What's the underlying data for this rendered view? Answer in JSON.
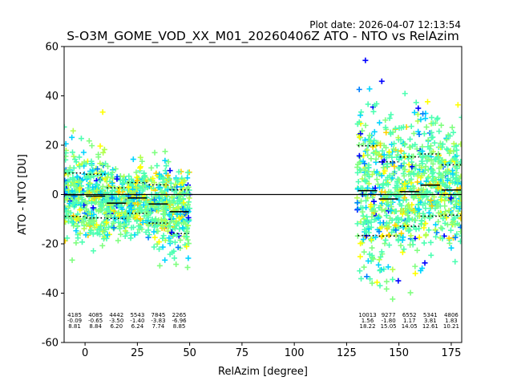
{
  "plot_date": "Plot date: 2026-04-07 12:13:54",
  "chart_data": {
    "type": "scatter",
    "title": "S-O3M_GOME_VOD_XX_M01_20260406Z ATO - NTO vs RelAzim",
    "xlabel": "RelAzim [degree]",
    "ylabel": "ATO - NTO [DU]",
    "xlim": [
      -10,
      180
    ],
    "ylim": [
      -60,
      60
    ],
    "xticks": [
      0,
      25,
      50,
      75,
      100,
      125,
      150,
      175
    ],
    "yticks": [
      -60,
      -40,
      -20,
      0,
      20,
      40,
      60
    ],
    "grid": false,
    "point_colors": [
      "#0000ff",
      "#0080ff",
      "#00d4ff",
      "#4dffb2",
      "#80ff80",
      "#b2ff4d",
      "#ffff00",
      "#ffd000"
    ],
    "zero_line": 0,
    "bins": [
      {
        "x0": -10,
        "x1": 0,
        "count": "4185",
        "mean": "-0.09",
        "std": "8.81",
        "mean_value": -0.09,
        "std_value": 8.81
      },
      {
        "x0": 0,
        "x1": 10,
        "count": "4085",
        "mean": "-0.65",
        "std": "8.84",
        "mean_value": -0.65,
        "std_value": 8.84
      },
      {
        "x0": 10,
        "x1": 20,
        "count": "4442",
        "mean": "-3.50",
        "std": "6.20",
        "mean_value": -3.5,
        "std_value": 6.2
      },
      {
        "x0": 20,
        "x1": 30,
        "count": "5543",
        "mean": "-1.40",
        "std": "6.24",
        "mean_value": -1.4,
        "std_value": 6.24
      },
      {
        "x0": 30,
        "x1": 40,
        "count": "7845",
        "mean": "-3.83",
        "std": "7.74",
        "mean_value": -3.83,
        "std_value": 7.74
      },
      {
        "x0": 40,
        "x1": 50,
        "count": "2265",
        "mean": "-6.96",
        "std": "8.85",
        "mean_value": -6.96,
        "std_value": 8.85
      },
      {
        "x0": 130,
        "x1": 140,
        "count": "10013",
        "mean": "1.56",
        "std": "18.22",
        "mean_value": 1.56,
        "std_value": 18.22
      },
      {
        "x0": 140,
        "x1": 150,
        "count": "9277",
        "mean": "-1.80",
        "std": "15.05",
        "mean_value": -1.8,
        "std_value": 15.05
      },
      {
        "x0": 150,
        "x1": 160,
        "count": "6552",
        "mean": "1.17",
        "std": "14.05",
        "mean_value": 1.17,
        "std_value": 14.05
      },
      {
        "x0": 160,
        "x1": 170,
        "count": "5341",
        "mean": "3.81",
        "std": "12.61",
        "mean_value": 3.81,
        "std_value": 12.61
      },
      {
        "x0": 170,
        "x1": 180,
        "count": "4806",
        "mean": "1.83",
        "std": "10.21",
        "mean_value": 1.83,
        "std_value": 10.21
      }
    ]
  }
}
